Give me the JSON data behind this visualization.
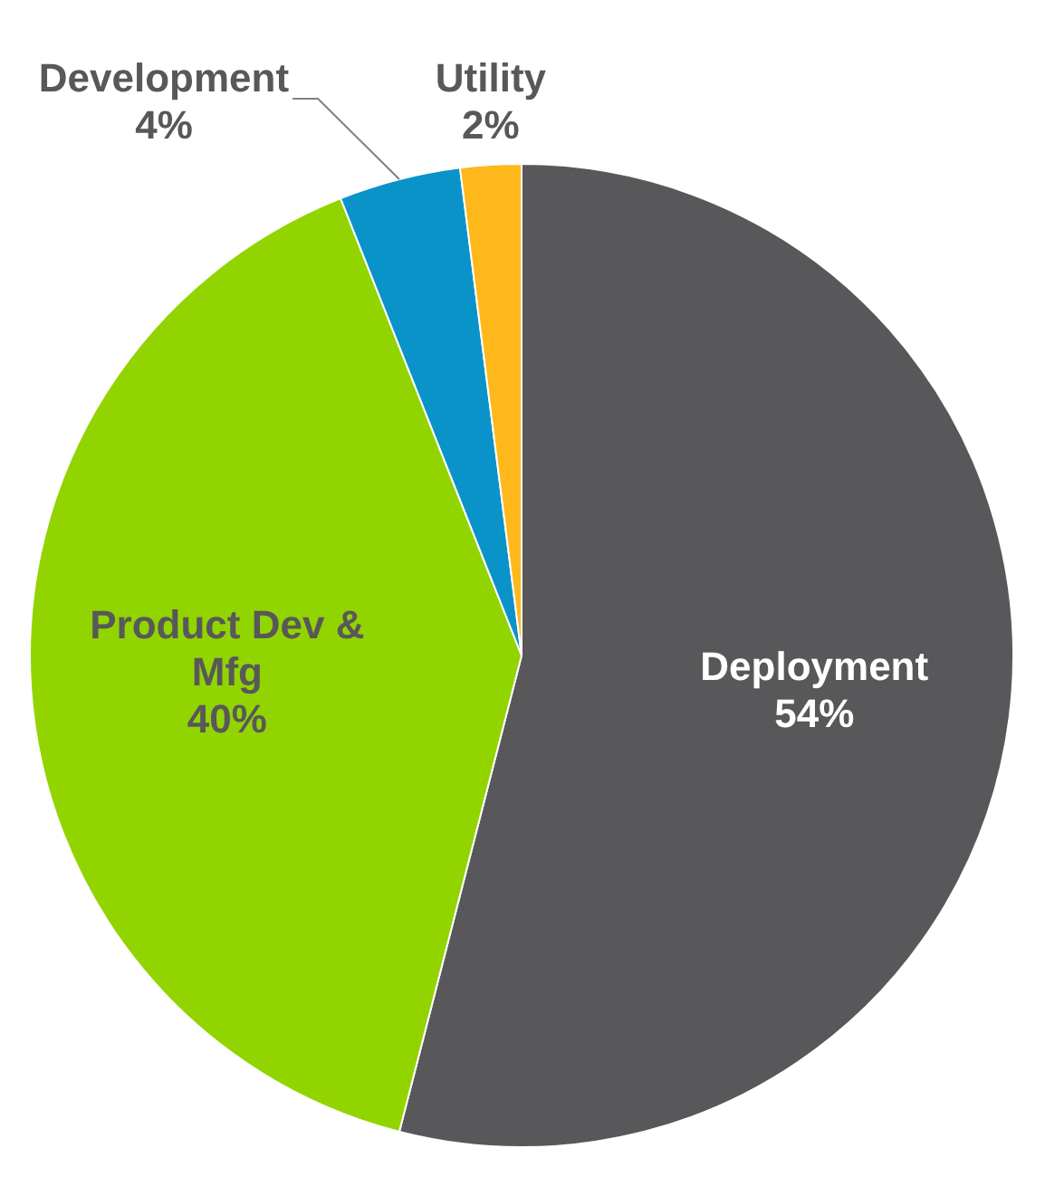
{
  "chart_data": {
    "type": "pie",
    "categories": [
      "Deployment",
      "Product Dev & Mfg",
      "Development",
      "Utility"
    ],
    "values": [
      54,
      40,
      4,
      2
    ],
    "colors": [
      "#58585a",
      "#92d400",
      "#0a93c9",
      "#ffb81c"
    ],
    "value_labels": [
      "54%",
      "40%",
      "4%",
      "2%"
    ],
    "legend": false
  }
}
